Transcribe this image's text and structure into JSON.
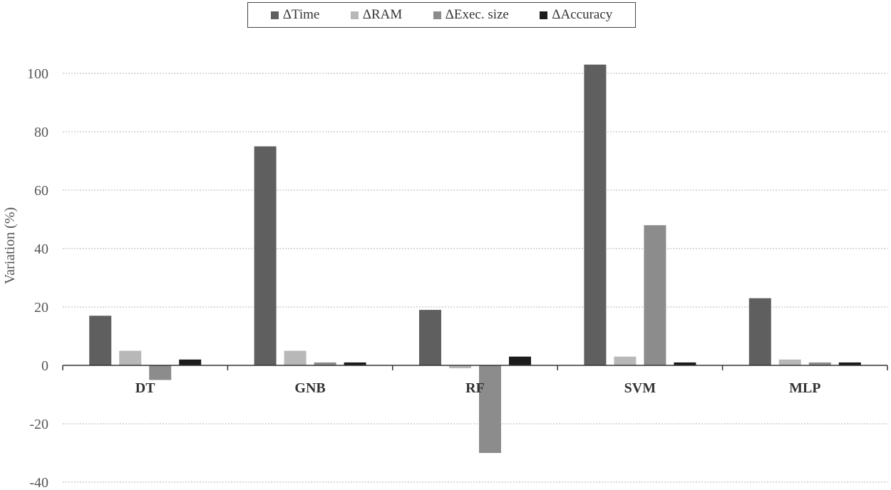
{
  "chart_data": {
    "type": "bar",
    "title": "",
    "xlabel": "",
    "ylabel": "Variation (%)",
    "ylim": [
      -40,
      100
    ],
    "yticks": [
      -40,
      -20,
      0,
      20,
      40,
      60,
      80,
      100
    ],
    "grid": true,
    "legend_position": "top",
    "categories": [
      "DT",
      "GNB",
      "RF",
      "SVM",
      "MLP"
    ],
    "series": [
      {
        "name": "ΔTime",
        "color": "#5f5f5f",
        "values": [
          17,
          75,
          19,
          103,
          23
        ]
      },
      {
        "name": "ΔRAM",
        "color": "#b8b8b8",
        "values": [
          5,
          5,
          -1,
          3,
          2
        ]
      },
      {
        "name": "ΔExec. size",
        "color": "#8c8c8c",
        "values": [
          -5,
          1,
          -30,
          48,
          1
        ]
      },
      {
        "name": "ΔAccuracy",
        "color": "#1c1c1c",
        "values": [
          2,
          1,
          3,
          1,
          1
        ]
      }
    ]
  }
}
